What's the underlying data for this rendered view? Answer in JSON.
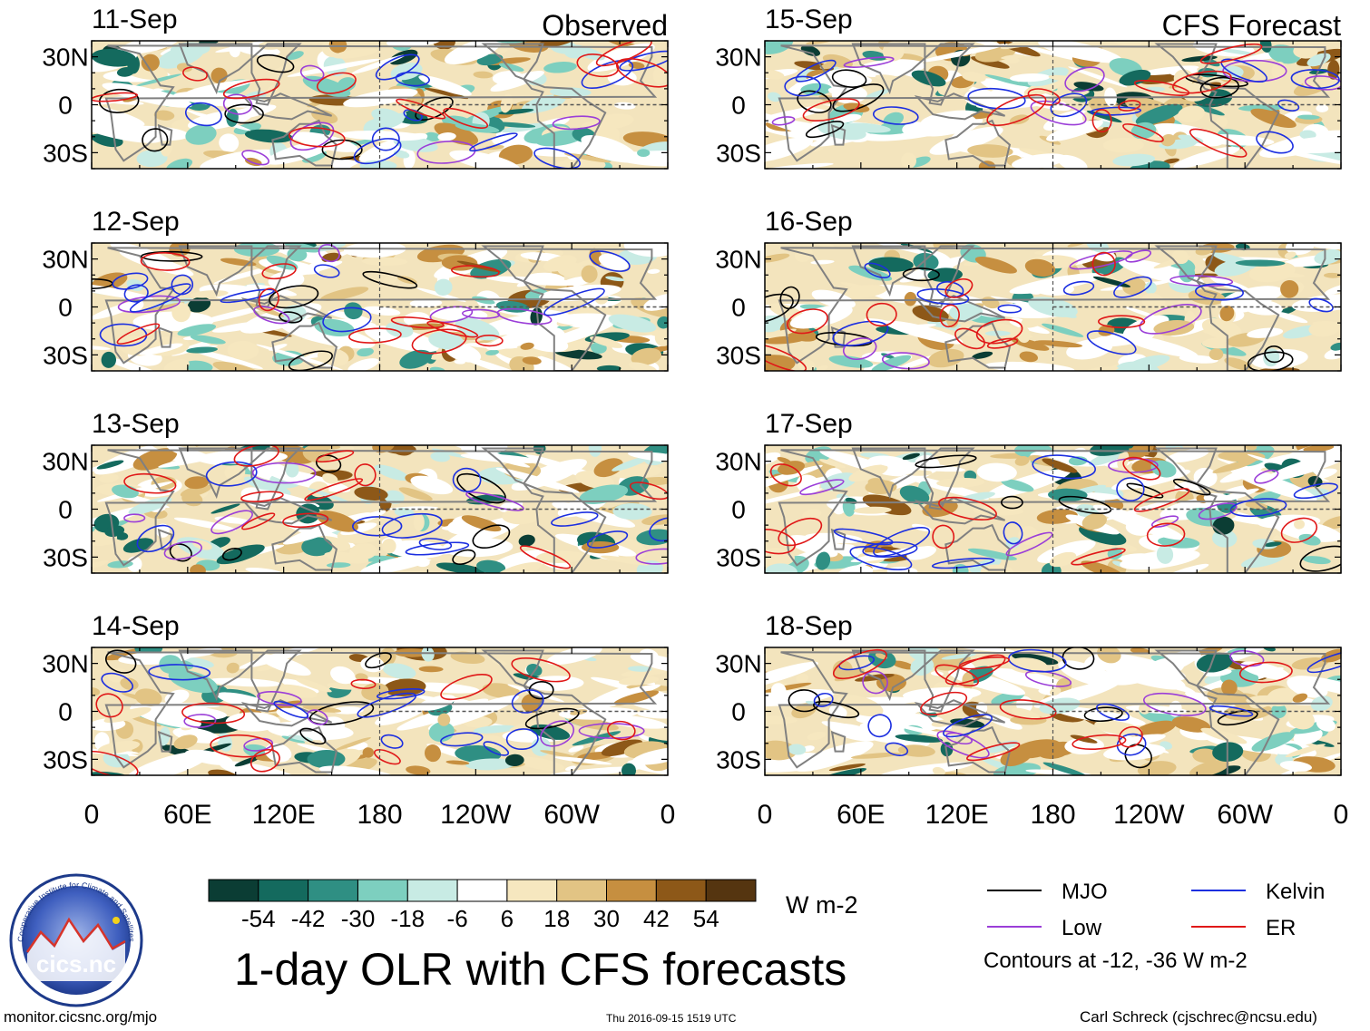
{
  "colors": {
    "scale": [
      "#0b3d34",
      "#146a5e",
      "#2f8f83",
      "#7dcfbf",
      "#c8ebe4",
      "#ffffff",
      "#f6e7bf",
      "#e2c484",
      "#c68f40",
      "#8d5818",
      "#553510"
    ],
    "mjo": "#000000",
    "low": "#9b3ed8",
    "kelvin": "#1c2fe0",
    "er": "#e01818",
    "land": "#808080",
    "dash": "#555555"
  },
  "chart_data": {
    "type": "heatmap",
    "title": "1-day OLR with CFS forecasts",
    "variable": "OLR anomaly",
    "units": "W m-2",
    "columns": [
      {
        "header": "Observed",
        "panels": [
          "11-Sep",
          "12-Sep",
          "13-Sep",
          "14-Sep"
        ]
      },
      {
        "header": "CFS Forecast",
        "panels": [
          "15-Sep",
          "16-Sep",
          "17-Sep",
          "18-Sep"
        ]
      }
    ],
    "x_ticks": [
      "0",
      "60E",
      "120E",
      "180",
      "120W",
      "60W",
      "0"
    ],
    "y_ticks": [
      "30N",
      "0",
      "30S"
    ],
    "xlim": [
      0,
      360
    ],
    "ylim": [
      -40,
      40
    ],
    "colorbar": {
      "labels": [
        "-54",
        "-42",
        "-30",
        "-18",
        "-6",
        "6",
        "18",
        "30",
        "42",
        "54"
      ],
      "units": "W m-2"
    },
    "contours": {
      "levels_text": "Contours at -12, -36 W m-2",
      "series": [
        {
          "name": "MJO",
          "color": "#000000"
        },
        {
          "name": "Low",
          "color": "#9b3ed8"
        },
        {
          "name": "Kelvin",
          "color": "#1c2fe0"
        },
        {
          "name": "ER",
          "color": "#e01818"
        }
      ]
    }
  },
  "footer": {
    "left": "monitor.cicsnc.org/mjo",
    "center": "Thu 2016-09-15 1519 UTC",
    "right": "Carl Schreck (cjschrec@ncsu.edu)"
  },
  "logo": {
    "name": "cics.nc",
    "ring_text": "Cooperative Institute for Climate and Satellites"
  }
}
